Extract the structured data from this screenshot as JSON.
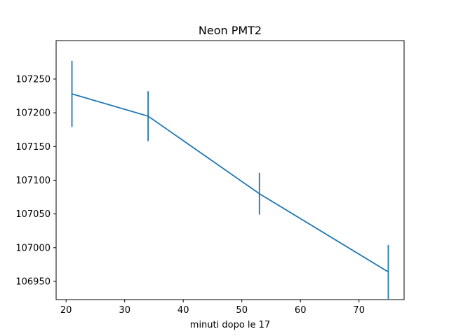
{
  "chart_data": {
    "type": "line",
    "title": "Neon PMT2",
    "xlabel": "minuti dopo le 17",
    "ylabel": "",
    "xlim": [
      18.3,
      77.7
    ],
    "ylim": [
      106923,
      107307
    ],
    "xticks": [
      20,
      30,
      40,
      50,
      60,
      70
    ],
    "yticks": [
      106950,
      107000,
      107050,
      107100,
      107150,
      107200,
      107250
    ],
    "grid": false,
    "legend": "none",
    "series": [
      {
        "color": "#1f77b4",
        "x": [
          21,
          34,
          53,
          75
        ],
        "y": [
          107228,
          107195,
          107080,
          106964
        ],
        "yerr": [
          49,
          37,
          31,
          40
        ]
      }
    ]
  }
}
